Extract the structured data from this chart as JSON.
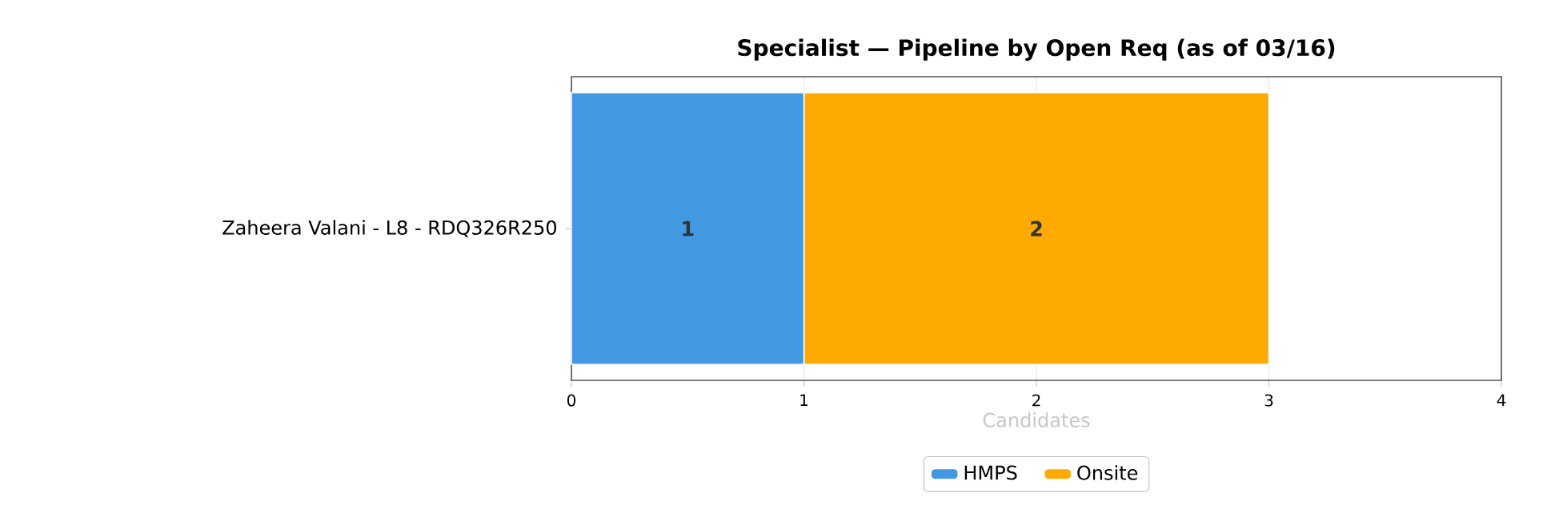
{
  "chart_data": {
    "type": "bar",
    "orientation": "horizontal",
    "stacked": true,
    "title": "Specialist — Pipeline by Open Req (as of 03/16)",
    "xlabel": "Candidates",
    "categories": [
      "Zaheera Valani - L8 - RDQ326R250"
    ],
    "series": [
      {
        "name": "HMPS",
        "color": "#4299e1",
        "values": [
          1
        ]
      },
      {
        "name": "Onsite",
        "color": "#ffaa00",
        "values": [
          2
        ]
      }
    ],
    "xlim": [
      0,
      4
    ],
    "xticks": [
      0,
      1,
      2,
      3,
      4
    ],
    "grid": "x",
    "legend": "bottom",
    "data_labels": true
  }
}
